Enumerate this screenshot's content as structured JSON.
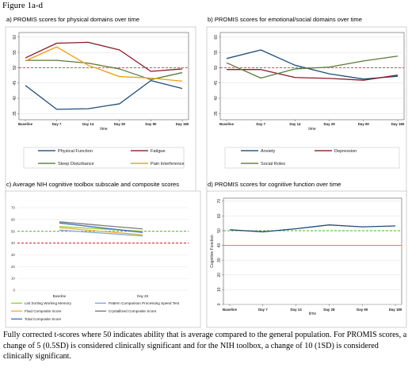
{
  "figure": {
    "title": "Figure 1a-d",
    "caption": "Fully corrected t-scores where 50 indicates ability that is average compared to the general population. For PROMIS scores, a change of 5 (0.5SD) is considered clinically significant and for the NIH toolbox, a change of 10 (1SD) is considered clinically significant."
  },
  "chart_data": [
    {
      "id": "a",
      "type": "line",
      "title": "a) PROMIS scores for physical domains over time",
      "xlabel": "time",
      "ylabel": "",
      "categories": [
        "Baseline",
        "Day 7",
        "Day 14",
        "Day 28",
        "Day 90",
        "Day 180"
      ],
      "yticks": [
        35,
        40,
        45,
        50,
        55,
        60
      ],
      "ylim": [
        33,
        61.5
      ],
      "reference_line": {
        "value": 50,
        "color": "#c0504d",
        "style": "dashed"
      },
      "series": [
        {
          "name": "Physical Function",
          "color": "#1f4e79",
          "values": [
            44.2,
            36.4,
            36.6,
            38.2,
            45.8,
            43.2
          ]
        },
        {
          "name": "Fatigue",
          "color": "#8b1a2b",
          "values": [
            53.2,
            58.0,
            58.3,
            55.8,
            48.8,
            49.6
          ]
        },
        {
          "name": "Sleep Disturbance",
          "color": "#5a7a3a",
          "values": [
            52.4,
            52.4,
            51.5,
            49.6,
            46.1,
            48.4
          ]
        },
        {
          "name": "Pain Interference",
          "color": "#f39c12",
          "values": [
            52.2,
            56.8,
            50.8,
            47.1,
            46.6,
            45.6
          ]
        }
      ],
      "legend": "bottom"
    },
    {
      "id": "b",
      "type": "line",
      "title": "b) PROMIS scores for emotional/social domains over time",
      "xlabel": "time",
      "ylabel": "",
      "categories": [
        "Baseline",
        "Day 7",
        "Day 14",
        "Day 28",
        "Day 90",
        "Day 180"
      ],
      "yticks": [
        35,
        40,
        45,
        50,
        55,
        60
      ],
      "ylim": [
        33,
        61.5
      ],
      "reference_line": {
        "value": 50,
        "color": "#c0504d",
        "style": "dashed"
      },
      "series": [
        {
          "name": "Anxiety",
          "color": "#1f4e79",
          "values": [
            53.0,
            55.8,
            50.8,
            48.0,
            46.3,
            47.2
          ]
        },
        {
          "name": "Depression",
          "color": "#8b1a2b",
          "values": [
            49.4,
            49.4,
            46.8,
            46.5,
            45.9,
            47.6
          ]
        },
        {
          "name": "Social Roles",
          "color": "#5a7a3a",
          "values": [
            51.6,
            46.6,
            49.6,
            50.2,
            52.2,
            53.8
          ]
        }
      ],
      "legend": "bottom"
    },
    {
      "id": "c",
      "type": "line",
      "title": "c) Average NIH cognitive toolbox subscale and composite scores",
      "xlabel": "",
      "ylabel": "",
      "categories": [
        "Baseline",
        "Day 28"
      ],
      "yticks": [
        0,
        10,
        20,
        30,
        40,
        50,
        60,
        70
      ],
      "ylim": [
        0,
        70
      ],
      "reference_lines": [
        {
          "value": 50,
          "color": "#4caf2a",
          "style": "dashed"
        },
        {
          "value": 40,
          "color": "#d11a1a",
          "style": "dashed"
        }
      ],
      "series": [
        {
          "name": "List Sorting Working Memory",
          "color": "#9acd32",
          "values": [
            54,
            50
          ]
        },
        {
          "name": "Pattern Comparison Processing Speed Test",
          "color": "#7fa7d6",
          "values": [
            51,
            46
          ]
        },
        {
          "name": "Fluid Composite Score",
          "color": "#e8b13a",
          "values": [
            53,
            47
          ]
        },
        {
          "name": "Crystallized Composite Score",
          "color": "#7a7a7a",
          "values": [
            58,
            52
          ]
        },
        {
          "name": "Total Composite Score",
          "color": "#4472c4",
          "values": [
            57,
            49
          ]
        }
      ],
      "legend": "bottom"
    },
    {
      "id": "d",
      "type": "line",
      "title": "d) PROMIS scores for cognitive function over time",
      "xlabel": "time",
      "ylabel": "Cognitive Function",
      "categories": [
        "Baseline",
        "Day 7",
        "Day 14",
        "Day 28",
        "Day 90",
        "Day 180"
      ],
      "yticks": [
        0,
        10,
        20,
        30,
        40,
        50,
        60,
        70
      ],
      "ylim": [
        0,
        72
      ],
      "reference_lines": [
        {
          "value": 50,
          "color": "#4caf2a",
          "style": "dashed"
        },
        {
          "value": 40,
          "color": "#ff7f27",
          "style": "solid"
        }
      ],
      "series": [
        {
          "name": "",
          "color": "#1f4e79",
          "values": [
            50.6,
            49.2,
            51.3,
            53.9,
            52.6,
            53.2
          ]
        }
      ],
      "legend": "none"
    }
  ]
}
